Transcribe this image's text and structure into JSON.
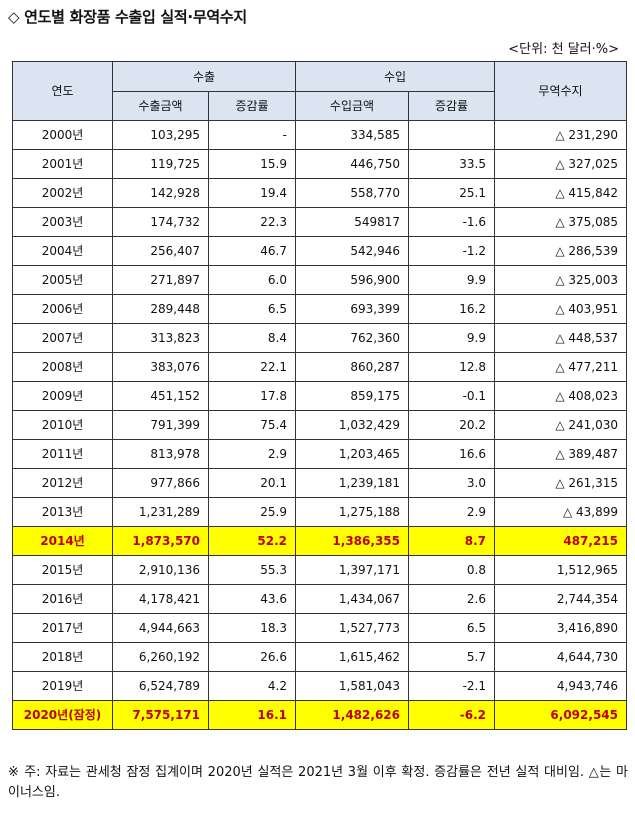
{
  "title": "◇ 연도별 화장품 수출입 실적·무역수지",
  "unit": "<단위: 천 달러·%>",
  "headers": {
    "year": "연도",
    "export": "수출",
    "import": "수입",
    "balance": "무역수지",
    "export_amount": "수출금액",
    "export_change": "증감률",
    "import_amount": "수입금액",
    "import_change": "증감률"
  },
  "rows": [
    {
      "year": "2000년",
      "export": "103,295",
      "export_change": "-",
      "import": "334,585",
      "import_change": "",
      "balance": "△ 231,290",
      "highlight": false
    },
    {
      "year": "2001년",
      "export": "119,725",
      "export_change": "15.9",
      "import": "446,750",
      "import_change": "33.5",
      "balance": "△ 327,025",
      "highlight": false
    },
    {
      "year": "2002년",
      "export": "142,928",
      "export_change": "19.4",
      "import": "558,770",
      "import_change": "25.1",
      "balance": "△ 415,842",
      "highlight": false
    },
    {
      "year": "2003년",
      "export": "174,732",
      "export_change": "22.3",
      "import": "549817",
      "import_change": "-1.6",
      "balance": "△ 375,085",
      "highlight": false
    },
    {
      "year": "2004년",
      "export": "256,407",
      "export_change": "46.7",
      "import": "542,946",
      "import_change": "-1.2",
      "balance": "△ 286,539",
      "highlight": false
    },
    {
      "year": "2005년",
      "export": "271,897",
      "export_change": "6.0",
      "import": "596,900",
      "import_change": "9.9",
      "balance": "△ 325,003",
      "highlight": false
    },
    {
      "year": "2006년",
      "export": "289,448",
      "export_change": "6.5",
      "import": "693,399",
      "import_change": "16.2",
      "balance": "△ 403,951",
      "highlight": false
    },
    {
      "year": "2007년",
      "export": "313,823",
      "export_change": "8.4",
      "import": "762,360",
      "import_change": "9.9",
      "balance": "△ 448,537",
      "highlight": false
    },
    {
      "year": "2008년",
      "export": "383,076",
      "export_change": "22.1",
      "import": "860,287",
      "import_change": "12.8",
      "balance": "△ 477,211",
      "highlight": false
    },
    {
      "year": "2009년",
      "export": "451,152",
      "export_change": "17.8",
      "import": "859,175",
      "import_change": "-0.1",
      "balance": "△ 408,023",
      "highlight": false
    },
    {
      "year": "2010년",
      "export": "791,399",
      "export_change": "75.4",
      "import": "1,032,429",
      "import_change": "20.2",
      "balance": "△ 241,030",
      "highlight": false
    },
    {
      "year": "2011년",
      "export": "813,978",
      "export_change": "2.9",
      "import": "1,203,465",
      "import_change": "16.6",
      "balance": "△ 389,487",
      "highlight": false
    },
    {
      "year": "2012년",
      "export": "977,866",
      "export_change": "20.1",
      "import": "1,239,181",
      "import_change": "3.0",
      "balance": "△ 261,315",
      "highlight": false
    },
    {
      "year": "2013년",
      "export": "1,231,289",
      "export_change": "25.9",
      "import": "1,275,188",
      "import_change": "2.9",
      "balance": "△ 43,899",
      "highlight": false
    },
    {
      "year": "2014년",
      "export": "1,873,570",
      "export_change": "52.2",
      "import": "1,386,355",
      "import_change": "8.7",
      "balance": "487,215",
      "highlight": true
    },
    {
      "year": "2015년",
      "export": "2,910,136",
      "export_change": "55.3",
      "import": "1,397,171",
      "import_change": "0.8",
      "balance": "1,512,965",
      "highlight": false
    },
    {
      "year": "2016년",
      "export": "4,178,421",
      "export_change": "43.6",
      "import": "1,434,067",
      "import_change": "2.6",
      "balance": "2,744,354",
      "highlight": false
    },
    {
      "year": "2017년",
      "export": "4,944,663",
      "export_change": "18.3",
      "import": "1,527,773",
      "import_change": "6.5",
      "balance": "3,416,890",
      "highlight": false
    },
    {
      "year": "2018년",
      "export": "6,260,192",
      "export_change": "26.6",
      "import": "1,615,462",
      "import_change": "5.7",
      "balance": "4,644,730",
      "highlight": false
    },
    {
      "year": "2019년",
      "export": "6,524,789",
      "export_change": "4.2",
      "import": "1,581,043",
      "import_change": "-2.1",
      "balance": "4,943,746",
      "highlight": false
    },
    {
      "year": "2020년(잠정)",
      "export": "7,575,171",
      "export_change": "16.1",
      "import": "1,482,626",
      "import_change": "-6.2",
      "balance": "6,092,545",
      "highlight": true
    }
  ],
  "note": "※ 주: 자료는 관세청 잠정 집계이며 2020년 실적은 2021년 3월 이후 확정. 증감률은 전년 실적 대비임. △는 마이너스임.",
  "colors": {
    "header_bg": "#dbe5f1",
    "highlight_bg": "#ffff00",
    "highlight_text": "#c00000",
    "border": "#333333"
  }
}
